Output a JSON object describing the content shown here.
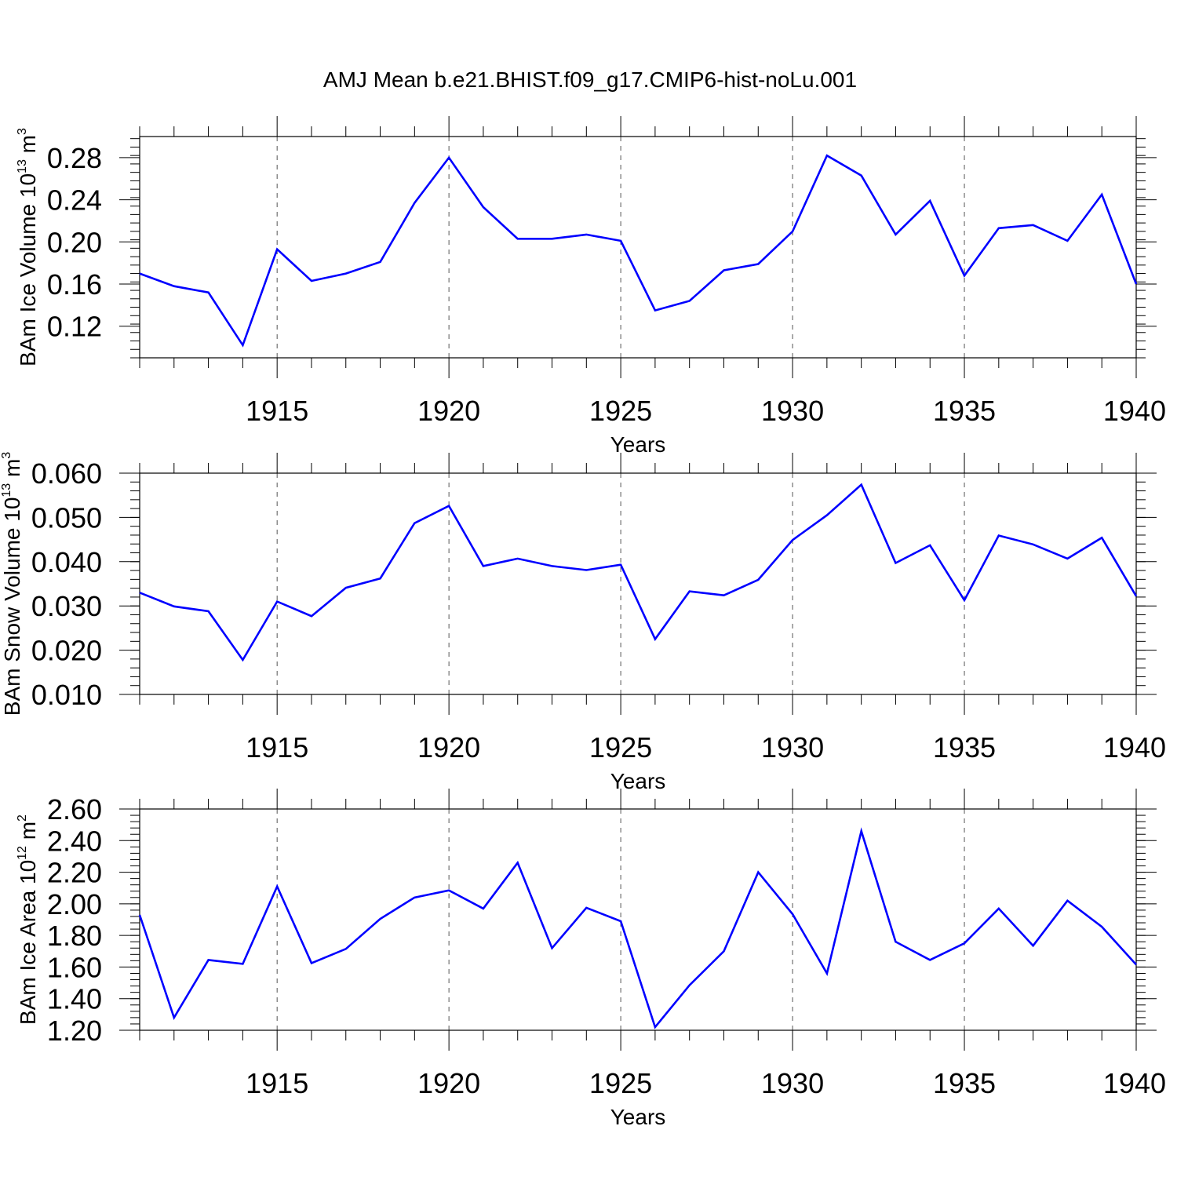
{
  "figure": {
    "title": "AMJ Mean b.e21.BHIST.f09_g17.CMIP6-hist-noLu.001"
  },
  "chart_data": [
    {
      "type": "line",
      "title": "AMJ Mean b.e21.BHIST.f09_g17.CMIP6-hist-noLu.001",
      "xlabel": "Years",
      "ylabel": "BAm Ice Volume 10",
      "ylabel_exp": "13",
      "ylabel_unit": " m",
      "ylabel_unit_exp": "3",
      "xlim": [
        1911,
        1940
      ],
      "ylim": [
        0.09,
        0.3
      ],
      "xticks": [
        1915,
        1920,
        1925,
        1930,
        1935,
        1940
      ],
      "xtick_labels": [
        "1915",
        "1920",
        "1925",
        "1930",
        "1935",
        "1940"
      ],
      "yticks": [
        0.12,
        0.16,
        0.2,
        0.24,
        0.28
      ],
      "ytick_labels": [
        "0.12",
        "0.16",
        "0.20",
        "0.24",
        "0.28"
      ],
      "color": "#0000ff",
      "grid": "vertical dashed at major x ticks",
      "x": [
        1911,
        1912,
        1913,
        1914,
        1915,
        1916,
        1917,
        1918,
        1919,
        1920,
        1921,
        1922,
        1923,
        1924,
        1925,
        1926,
        1927,
        1928,
        1929,
        1930,
        1931,
        1932,
        1933,
        1934,
        1935,
        1936,
        1937,
        1938,
        1939,
        1940
      ],
      "y": [
        0.17,
        0.158,
        0.152,
        0.102,
        0.193,
        0.163,
        0.17,
        0.181,
        0.237,
        0.28,
        0.233,
        0.203,
        0.203,
        0.207,
        0.201,
        0.135,
        0.144,
        0.173,
        0.179,
        0.21,
        0.282,
        0.263,
        0.207,
        0.239,
        0.168,
        0.213,
        0.216,
        0.201,
        0.245,
        0.16
      ]
    },
    {
      "type": "line",
      "xlabel": "Years",
      "ylabel": "BAm Snow Volume 10",
      "ylabel_exp": "13",
      "ylabel_unit": " m",
      "ylabel_unit_exp": "3",
      "xlim": [
        1911,
        1940
      ],
      "ylim": [
        0.01,
        0.06
      ],
      "xticks": [
        1915,
        1920,
        1925,
        1930,
        1935,
        1940
      ],
      "xtick_labels": [
        "1915",
        "1920",
        "1925",
        "1930",
        "1935",
        "1940"
      ],
      "yticks": [
        0.01,
        0.02,
        0.03,
        0.04,
        0.05,
        0.06
      ],
      "ytick_labels": [
        "0.010",
        "0.020",
        "0.030",
        "0.040",
        "0.050",
        "0.060"
      ],
      "color": "#0000ff",
      "grid": "vertical dashed at major x ticks",
      "x": [
        1911,
        1912,
        1913,
        1914,
        1915,
        1916,
        1917,
        1918,
        1919,
        1920,
        1921,
        1922,
        1923,
        1924,
        1925,
        1926,
        1927,
        1928,
        1929,
        1930,
        1931,
        1932,
        1933,
        1934,
        1935,
        1936,
        1937,
        1938,
        1939,
        1940
      ],
      "y": [
        0.033,
        0.0299,
        0.0288,
        0.0178,
        0.031,
        0.0277,
        0.0341,
        0.0362,
        0.0487,
        0.0526,
        0.039,
        0.0407,
        0.039,
        0.0381,
        0.0393,
        0.0225,
        0.0333,
        0.0324,
        0.0359,
        0.0449,
        0.0505,
        0.0574,
        0.0397,
        0.0437,
        0.0313,
        0.0459,
        0.0439,
        0.0407,
        0.0454,
        0.0322
      ]
    },
    {
      "type": "line",
      "xlabel": "Years",
      "ylabel": "BAm Ice Area 10",
      "ylabel_exp": "12",
      "ylabel_unit": " m",
      "ylabel_unit_exp": "2",
      "xlim": [
        1911,
        1940
      ],
      "ylim": [
        1.2,
        2.6
      ],
      "xticks": [
        1915,
        1920,
        1925,
        1930,
        1935,
        1940
      ],
      "xtick_labels": [
        "1915",
        "1920",
        "1925",
        "1930",
        "1935",
        "1940"
      ],
      "yticks": [
        1.2,
        1.4,
        1.6,
        1.8,
        2.0,
        2.2,
        2.4,
        2.6
      ],
      "ytick_labels": [
        "1.20",
        "1.40",
        "1.60",
        "1.80",
        "2.00",
        "2.20",
        "2.40",
        "2.60"
      ],
      "color": "#0000ff",
      "grid": "vertical dashed at major x ticks",
      "x": [
        1911,
        1912,
        1913,
        1914,
        1915,
        1916,
        1917,
        1918,
        1919,
        1920,
        1921,
        1922,
        1923,
        1924,
        1925,
        1926,
        1927,
        1928,
        1929,
        1930,
        1931,
        1932,
        1933,
        1934,
        1935,
        1936,
        1937,
        1938,
        1939,
        1940
      ],
      "y": [
        1.93,
        1.28,
        1.645,
        1.62,
        2.11,
        1.625,
        1.715,
        1.905,
        2.04,
        2.085,
        1.97,
        2.26,
        1.72,
        1.975,
        1.89,
        1.22,
        1.485,
        1.7,
        2.2,
        1.935,
        1.56,
        2.46,
        1.76,
        1.645,
        1.75,
        1.97,
        1.735,
        2.02,
        1.855,
        1.615
      ]
    }
  ]
}
